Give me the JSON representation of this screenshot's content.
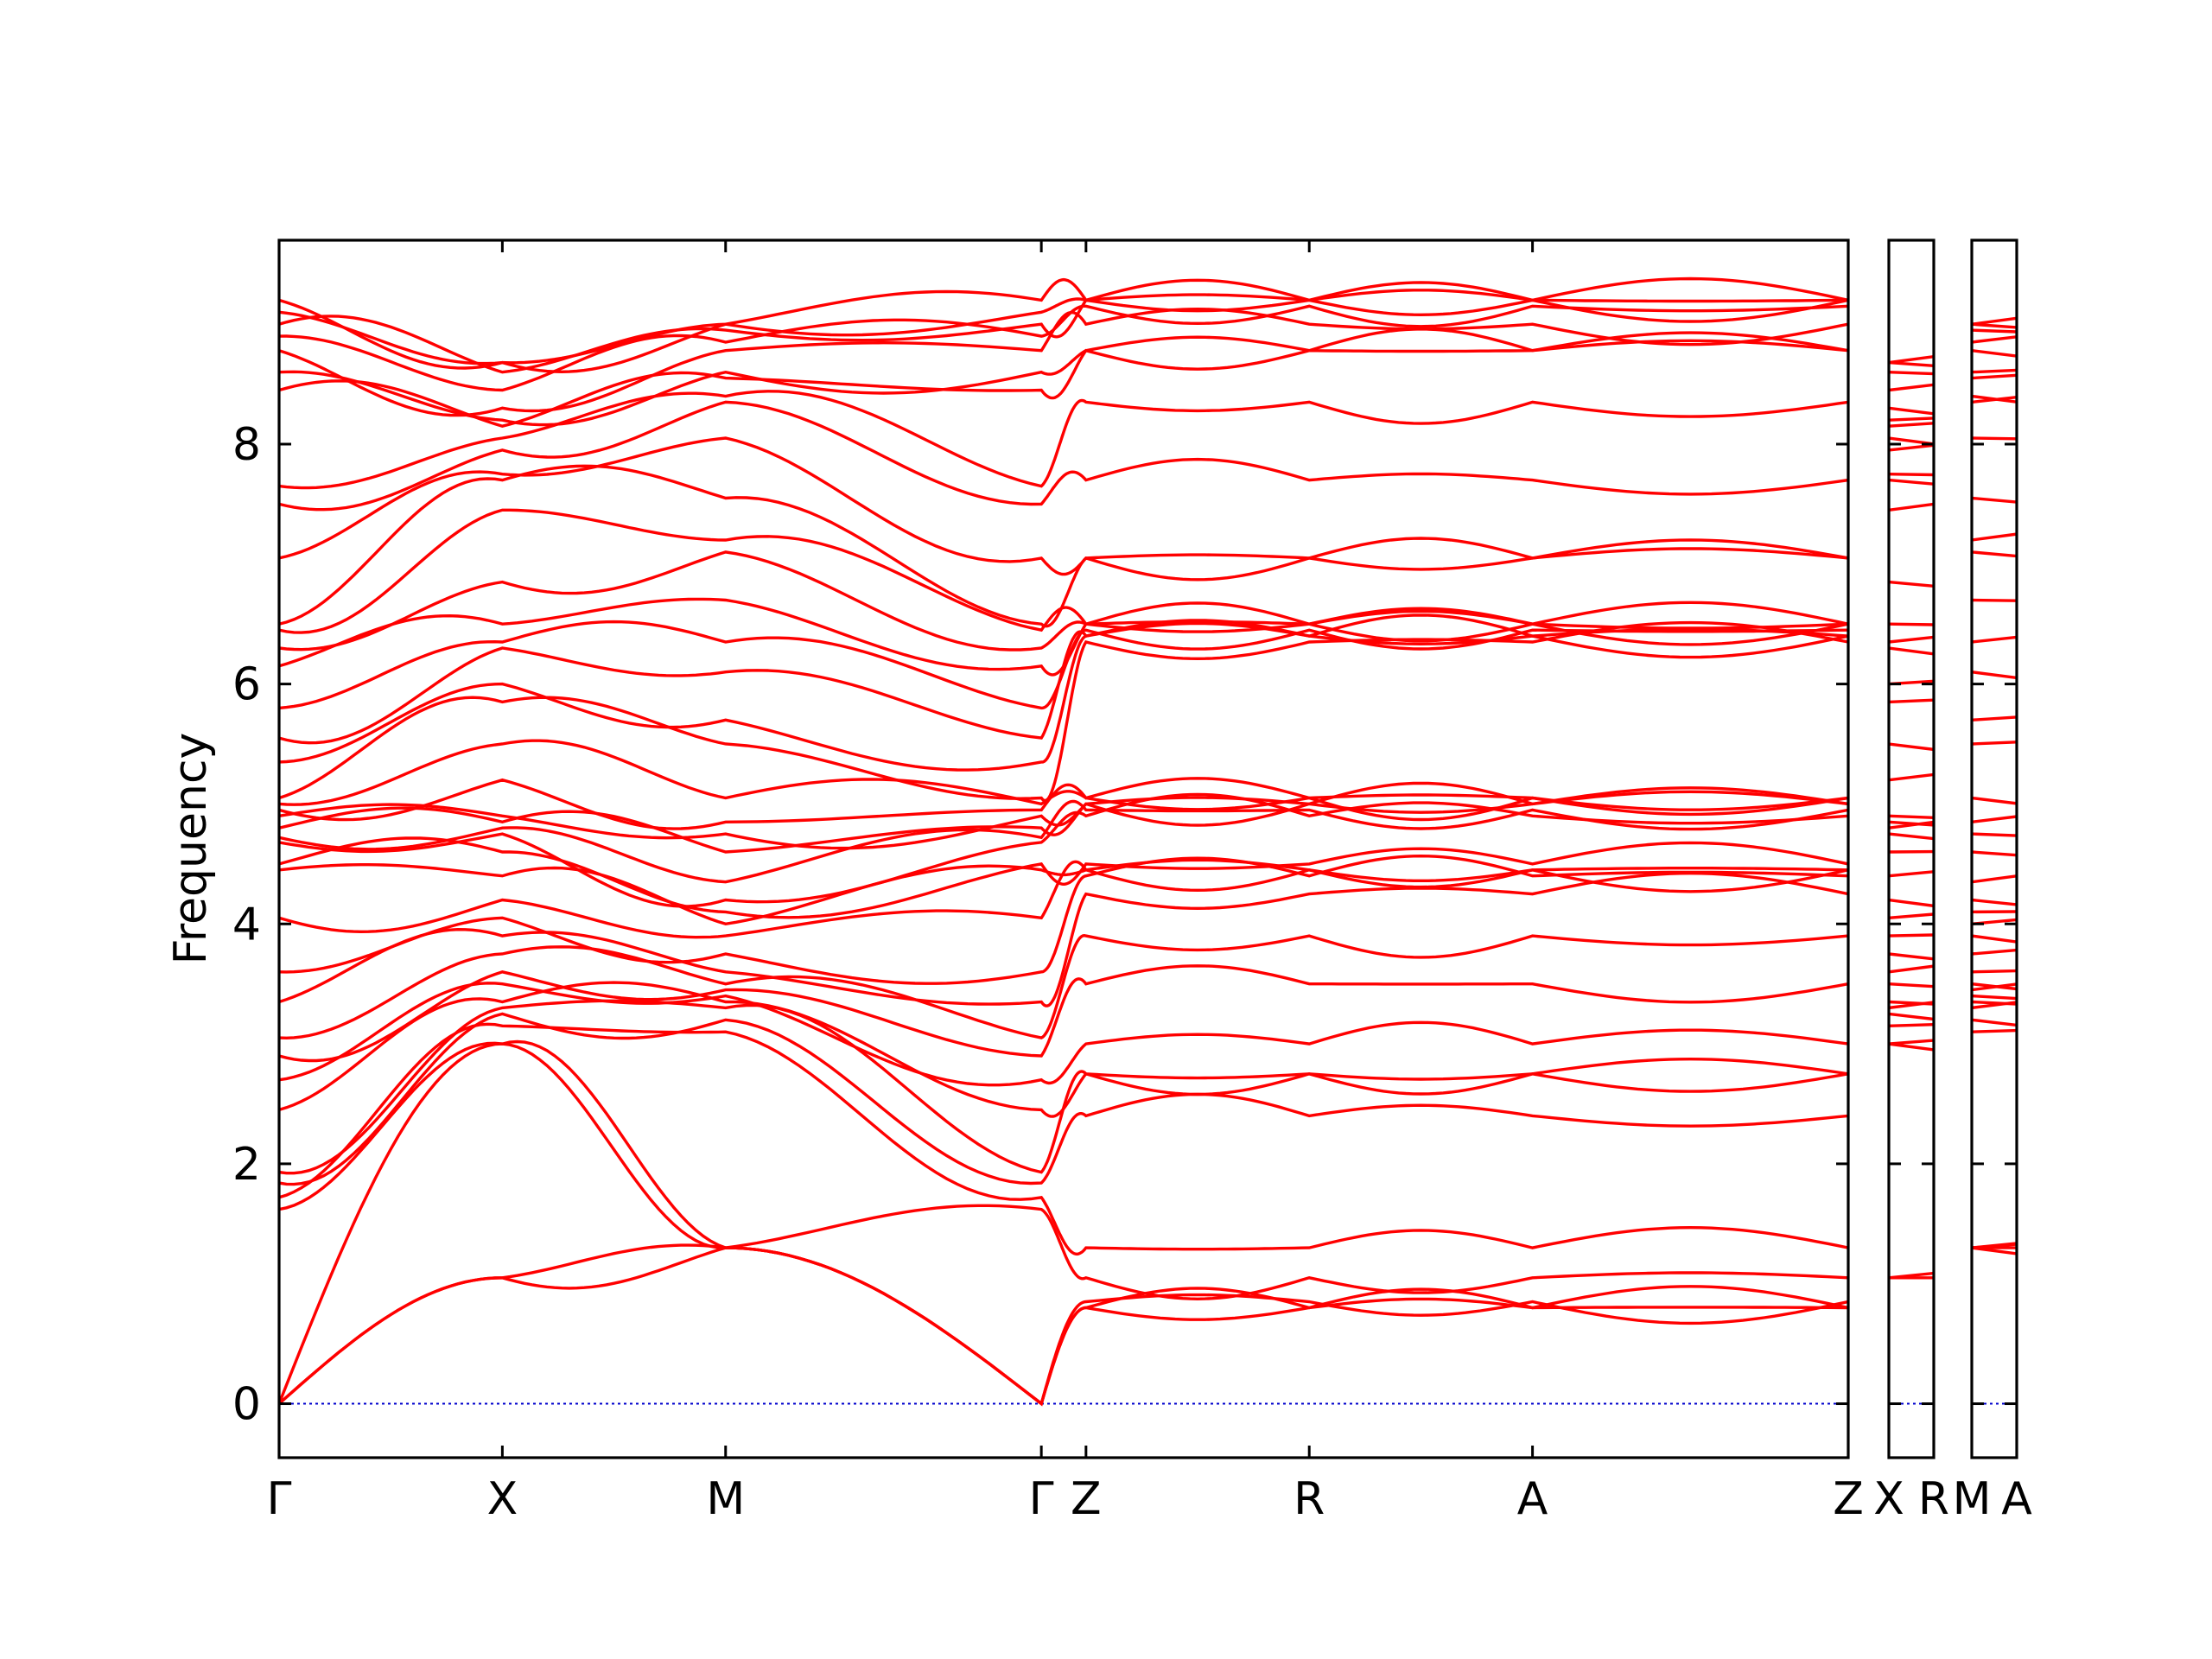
{
  "chart_data": {
    "type": "line",
    "title": "",
    "xlabel": "",
    "ylabel": "Frequency",
    "ylim": [
      -0.45,
      9.7
    ],
    "yticks": [
      0,
      2,
      4,
      6,
      8
    ],
    "grid": false,
    "legend": "none",
    "line_color": "#ff0000",
    "zero_line_color": "#0000cc",
    "panels": [
      {
        "path": [
          "Γ",
          "X",
          "M",
          "Γ",
          "Z",
          "R",
          "A",
          "Z"
        ],
        "segment_lengths": [
          1.0,
          1.0,
          1.4142,
          0.2,
          1.0,
          1.0,
          1.4142
        ]
      },
      {
        "path": [
          "X",
          "R"
        ],
        "segment_lengths": [
          0.2
        ]
      },
      {
        "path": [
          "M",
          "A"
        ],
        "segment_lengths": [
          0.2
        ]
      }
    ],
    "x_tick_labels": [
      "Γ",
      "X",
      "M",
      "Γ",
      "Z",
      "R",
      "A",
      "Z",
      "X",
      "R",
      "M",
      "A"
    ],
    "key_frequencies": {
      "Γ": [
        0,
        0,
        0,
        1.62,
        1.72,
        1.84,
        1.93,
        2.45,
        2.7,
        2.9,
        3.05,
        3.35,
        3.6,
        4.05,
        4.45,
        4.5,
        4.68,
        4.72,
        4.8,
        4.9,
        4.95,
        5.0,
        5.05,
        5.35,
        5.55,
        5.8,
        6.15,
        6.3,
        6.45,
        6.5,
        7.05,
        7.5,
        7.65,
        8.45,
        8.6,
        8.78,
        8.9,
        9.0,
        9.1,
        9.2
      ],
      "X": [
        1.05,
        1.05,
        3.0,
        3.0,
        3.15,
        3.25,
        3.3,
        3.35,
        3.5,
        3.6,
        3.75,
        3.9,
        4.05,
        4.2,
        4.4,
        4.6,
        4.75,
        4.8,
        4.85,
        4.9,
        5.2,
        5.5,
        5.85,
        6.0,
        6.3,
        6.35,
        6.5,
        6.85,
        7.45,
        7.7,
        7.75,
        7.95,
        8.05,
        8.15,
        8.2,
        8.3,
        8.45,
        8.6,
        8.68,
        8.68
      ],
      "M": [
        1.3,
        1.3,
        1.3,
        1.3,
        3.1,
        3.2,
        3.3,
        3.35,
        3.4,
        3.45,
        3.5,
        3.6,
        3.75,
        3.9,
        4.0,
        4.1,
        4.2,
        4.35,
        4.6,
        4.75,
        4.85,
        5.05,
        5.5,
        5.7,
        6.1,
        6.35,
        6.7,
        7.1,
        7.2,
        7.55,
        8.05,
        8.35,
        8.4,
        8.55,
        8.6,
        8.78,
        8.85,
        8.95,
        9.0,
        9.0
      ],
      "Z": [
        0.8,
        0.85,
        1.05,
        1.3,
        2.4,
        2.75,
        3.0,
        3.5,
        3.9,
        4.25,
        4.4,
        4.45,
        4.5,
        4.9,
        4.95,
        5.0,
        5.0,
        5.05,
        6.35,
        6.4,
        6.4,
        6.45,
        6.5,
        6.5,
        7.05,
        7.05,
        7.7,
        8.35,
        8.78,
        9.0,
        9.15,
        9.2,
        9.2,
        9.2
      ]
    }
  }
}
